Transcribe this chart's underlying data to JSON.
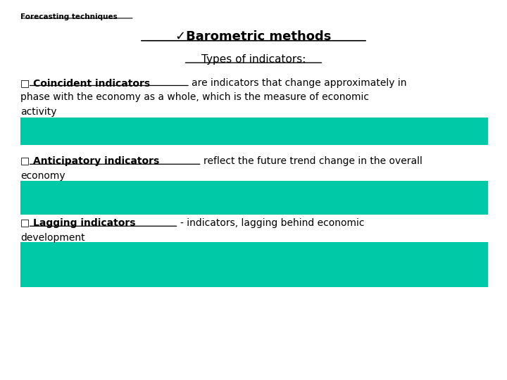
{
  "background_color": "#ffffff",
  "top_label": "Forecasting techniques",
  "title1": "✓Barometric methods",
  "title2": "Types of indicators:",
  "bullet1_bold": "□ Coincident indicators ",
  "bullet1_rest1": "are indicators that change approximately in",
  "bullet1_rest2": "phase with the economy as a whole, which is the measure of economic",
  "bullet1_rest3": "activity",
  "bullet2_bold": "□ Anticipatory indicators ",
  "bullet2_rest1": "reflect the future trend change in the overall",
  "bullet2_rest2": "economy",
  "bullet3_bold": "□ Lagging indicators ",
  "bullet3_rest1": "- indicators, lagging behind economic",
  "bullet3_rest2": "development",
  "bar_color": "#00c9a7",
  "font_family": "DejaVu Sans"
}
